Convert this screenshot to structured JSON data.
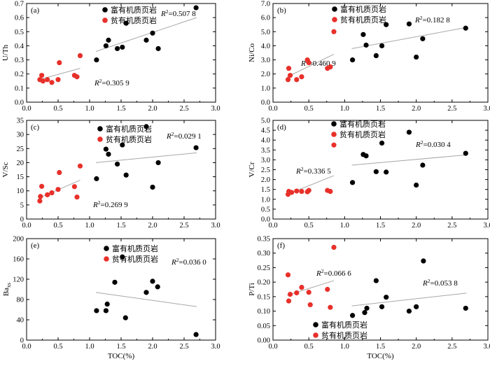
{
  "colors": {
    "rich": "#000000",
    "poor": "#e8302a",
    "fit_line": "#a8a8a8",
    "axis": "#000000"
  },
  "legend": {
    "rich": "富有机质页岩",
    "poor": "贫有机质页岩"
  },
  "xlabel": "TOC(%)",
  "chart_data": [
    {
      "panel": "(a)",
      "type": "scatter",
      "ylabel": "U/Th",
      "xlim": [
        0.0,
        3.0
      ],
      "ylim": [
        0.0,
        0.7
      ],
      "xticks": [
        "0.0",
        "0.5",
        "1.0",
        "1.5",
        "2.0",
        "2.5",
        "3.0"
      ],
      "yticks": [
        "0.0",
        "0.1",
        "0.2",
        "0.3",
        "0.4",
        "0.5",
        "0.6",
        "0.7"
      ],
      "legend_position": "top-left",
      "series": [
        {
          "name": "富有机质页岩",
          "x": [
            1.11,
            1.26,
            1.3,
            1.44,
            1.52,
            1.58,
            1.9,
            2.0,
            2.09,
            2.69
          ],
          "y": [
            0.3,
            0.4,
            0.44,
            0.38,
            0.39,
            0.56,
            0.44,
            0.49,
            0.38,
            0.67
          ],
          "fit": {
            "x": [
              1.1,
              2.7
            ],
            "y": [
              0.36,
              0.6
            ],
            "r2": "=0.507 8"
          }
        },
        {
          "name": "贫有机质页岩",
          "x": [
            0.21,
            0.24,
            0.26,
            0.33,
            0.4,
            0.5,
            0.52,
            0.76,
            0.8,
            0.85
          ],
          "y": [
            0.16,
            0.19,
            0.15,
            0.16,
            0.14,
            0.16,
            0.28,
            0.19,
            0.18,
            0.33
          ],
          "fit": {
            "x": [
              0.2,
              0.85
            ],
            "y": [
              0.16,
              0.24
            ],
            "r2": "=0.305 9"
          }
        }
      ]
    },
    {
      "panel": "(b)",
      "type": "scatter",
      "ylabel": "Ni/Co",
      "xlim": [
        0.0,
        3.0
      ],
      "ylim": [
        0.0,
        7.0
      ],
      "xticks": [
        "0.0",
        "0.5",
        "1.0",
        "1.5",
        "2.0",
        "2.5",
        "3.0"
      ],
      "yticks": [
        "0.0",
        "1.0",
        "2.0",
        "3.0",
        "4.0",
        "5.0",
        "6.0",
        "7.0"
      ],
      "legend_position": "top-left",
      "series": [
        {
          "name": "富有机质页岩",
          "x": [
            1.11,
            1.26,
            1.3,
            1.44,
            1.52,
            1.58,
            1.9,
            2.0,
            2.09,
            2.69
          ],
          "y": [
            3.0,
            4.8,
            4.05,
            3.3,
            4.0,
            5.5,
            5.55,
            3.2,
            4.5,
            5.25
          ],
          "fit": {
            "x": [
              1.1,
              2.7
            ],
            "y": [
              3.8,
              5.3
            ],
            "r2": "=0.182 8"
          }
        },
        {
          "name": "贫有机质页岩",
          "x": [
            0.21,
            0.22,
            0.24,
            0.33,
            0.4,
            0.48,
            0.5,
            0.76,
            0.8,
            0.85
          ],
          "y": [
            1.6,
            2.4,
            1.9,
            1.6,
            1.8,
            3.0,
            2.8,
            2.4,
            2.5,
            5.0
          ],
          "fit": {
            "x": [
              0.2,
              0.85
            ],
            "y": [
              1.8,
              3.4
            ],
            "r2": "=0.460 9"
          }
        }
      ]
    },
    {
      "panel": "(c)",
      "type": "scatter",
      "ylabel": "V/Sc",
      "xlim": [
        0.0,
        3.0
      ],
      "ylim": [
        0,
        35
      ],
      "xticks": [
        "0.0",
        "0.5",
        "1.0",
        "1.5",
        "2.0",
        "2.5",
        "3.0"
      ],
      "yticks": [
        "0",
        "5",
        "10",
        "15",
        "20",
        "25",
        "30",
        "35"
      ],
      "legend_position": "top-left",
      "series": [
        {
          "name": "富有机质页岩",
          "x": [
            1.11,
            1.26,
            1.3,
            1.44,
            1.52,
            1.58,
            1.9,
            2.0,
            2.09,
            2.69
          ],
          "y": [
            14.3,
            24.8,
            23.0,
            19.5,
            26.3,
            15.6,
            32.8,
            11.3,
            20.0,
            25.3
          ],
          "fit": {
            "x": [
              1.1,
              2.7
            ],
            "y": [
              20.0,
              23.5
            ],
            "r2": "=0.029 1"
          }
        },
        {
          "name": "贫有机质页岩",
          "x": [
            0.21,
            0.22,
            0.24,
            0.33,
            0.4,
            0.5,
            0.52,
            0.76,
            0.8,
            0.85
          ],
          "y": [
            6.4,
            8.0,
            11.6,
            8.6,
            9.3,
            10.5,
            16.5,
            11.5,
            7.8,
            18.8
          ],
          "fit": {
            "x": [
              0.2,
              0.85
            ],
            "y": [
              7.5,
              13.8
            ],
            "r2": "=0.269 9"
          }
        }
      ]
    },
    {
      "panel": "(d)",
      "type": "scatter",
      "ylabel": "V/Cr",
      "xlim": [
        0.0,
        3.0
      ],
      "ylim": [
        0.0,
        5.0
      ],
      "xticks": [
        "0.0",
        "0.5",
        "1.0",
        "1.5",
        "2.0",
        "2.5",
        "3.0"
      ],
      "yticks": [
        "0.0",
        "0.5",
        "1.0",
        "1.5",
        "2.0",
        "2.5",
        "3.0",
        "3.5",
        "4.0",
        "4.5",
        "5.0"
      ],
      "legend_position": "top-left",
      "series": [
        {
          "name": "富有机质页岩",
          "x": [
            1.11,
            1.26,
            1.3,
            1.44,
            1.52,
            1.58,
            1.9,
            2.0,
            2.09,
            2.69
          ],
          "y": [
            1.85,
            3.27,
            3.2,
            2.4,
            3.85,
            2.38,
            4.4,
            1.72,
            2.73,
            3.33
          ],
          "fit": {
            "x": [
              1.1,
              2.7
            ],
            "y": [
              2.73,
              3.25
            ],
            "r2": "=0.030 4"
          }
        },
        {
          "name": "贫有机质页岩",
          "x": [
            0.21,
            0.22,
            0.26,
            0.33,
            0.4,
            0.48,
            0.5,
            0.76,
            0.8,
            0.85
          ],
          "y": [
            1.25,
            1.4,
            1.35,
            1.42,
            1.4,
            1.38,
            1.45,
            1.45,
            1.4,
            3.75
          ],
          "fit": {
            "x": [
              0.2,
              0.85
            ],
            "y": [
              1.25,
              2.2
            ],
            "r2": "=0.336 5"
          }
        }
      ]
    },
    {
      "panel": "(e)",
      "type": "scatter",
      "ylabel": "Baxs",
      "ylabel_main": "Ba",
      "ylabel_sub": "xs",
      "xlim": [
        0.0,
        3.0
      ],
      "ylim": [
        0,
        200
      ],
      "xticks": [
        "0.0",
        "0.5",
        "1.0",
        "1.5",
        "2.0",
        "2.5",
        "3.0"
      ],
      "yticks": [
        "0",
        "40",
        "80",
        "120",
        "160",
        "200"
      ],
      "legend_position": "top-left",
      "series": [
        {
          "name": "富有机质页岩",
          "x": [
            1.11,
            1.26,
            1.28,
            1.4,
            1.52,
            1.57,
            1.9,
            2.0,
            2.08,
            2.69
          ],
          "y": [
            58,
            58,
            71,
            114,
            164,
            44,
            94,
            116,
            105,
            11
          ],
          "fit": {
            "x": [
              1.1,
              2.7
            ],
            "y": [
              94,
              66
            ],
            "r2": "=0.036 0"
          }
        }
      ]
    },
    {
      "panel": "(f)",
      "type": "scatter",
      "ylabel": "P/Ti",
      "xlim": [
        0.0,
        3.0
      ],
      "ylim": [
        0.0,
        0.35
      ],
      "xticks": [
        "0.0",
        "0.5",
        "1.0",
        "1.5",
        "2.0",
        "2.5",
        "3.0"
      ],
      "yticks": [
        "0.00",
        "0.05",
        "0.10",
        "0.15",
        "0.20",
        "0.25",
        "0.30",
        "0.35"
      ],
      "legend_position": "bottom-left",
      "series": [
        {
          "name": "富有机质页岩",
          "x": [
            1.11,
            1.28,
            1.31,
            1.44,
            1.52,
            1.58,
            1.9,
            2.0,
            2.1,
            2.69
          ],
          "y": [
            0.085,
            0.095,
            0.11,
            0.205,
            0.115,
            0.148,
            0.1,
            0.115,
            0.273,
            0.11
          ],
          "fit": {
            "x": [
              1.1,
              2.7
            ],
            "y": [
              0.118,
              0.162
            ],
            "r2": "=0.053 8"
          }
        },
        {
          "name": "贫有机质页岩",
          "x": [
            0.21,
            0.22,
            0.24,
            0.33,
            0.4,
            0.5,
            0.52,
            0.76,
            0.8,
            0.85
          ],
          "y": [
            0.225,
            0.135,
            0.158,
            0.163,
            0.182,
            0.165,
            0.122,
            0.175,
            0.113,
            0.32
          ],
          "fit": {
            "x": [
              0.2,
              0.85
            ],
            "y": [
              0.155,
              0.205
            ],
            "r2": "=0.066 6"
          }
        }
      ]
    }
  ]
}
